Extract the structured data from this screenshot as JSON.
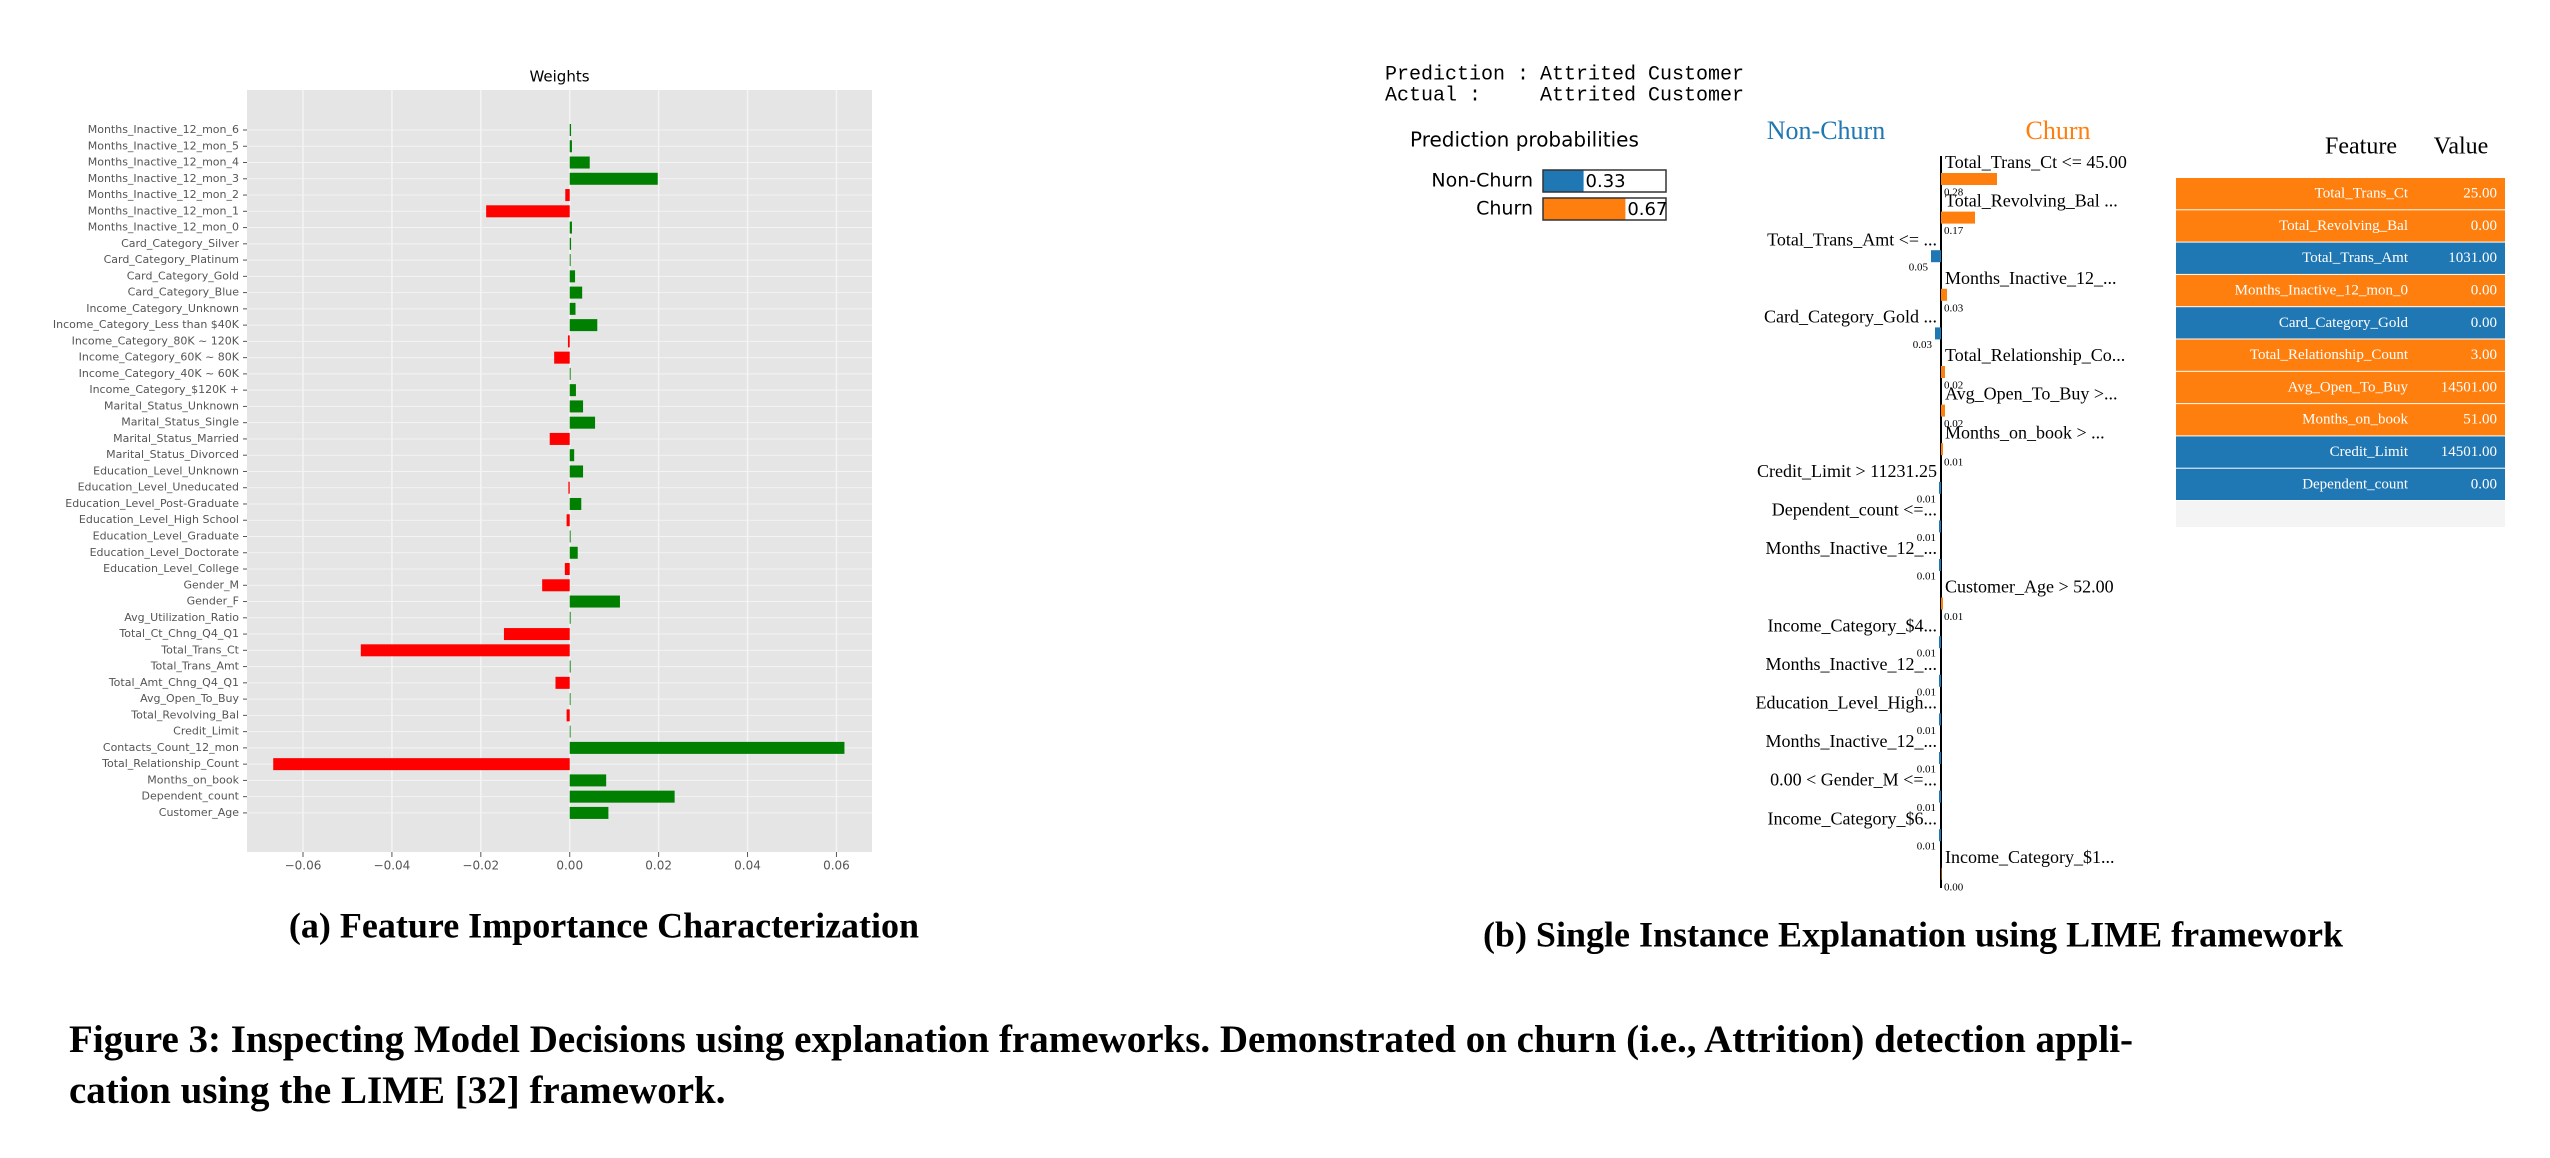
{
  "chart_data": [
    {
      "type": "bar",
      "title": "Weights",
      "categories": [
        "Months_Inactive_12_mon_6",
        "Months_Inactive_12_mon_5",
        "Months_Inactive_12_mon_4",
        "Months_Inactive_12_mon_3",
        "Months_Inactive_12_mon_2",
        "Months_Inactive_12_mon_1",
        "Months_Inactive_12_mon_0",
        "Card_Category_Silver",
        "Card_Category_Platinum",
        "Card_Category_Gold",
        "Card_Category_Blue",
        "Income_Category_Unknown",
        "Income_Category_Less than $40K",
        "Income_Category_80K ~ 120K",
        "Income_Category_60K ~ 80K",
        "Income_Category_40K ~ 60K",
        "Income_Category_$120K +",
        "Marital_Status_Unknown",
        "Marital_Status_Single",
        "Marital_Status_Married",
        "Marital_Status_Divorced",
        "Education_Level_Unknown",
        "Education_Level_Uneducated",
        "Education_Level_Post-Graduate",
        "Education_Level_High School",
        "Education_Level_Graduate",
        "Education_Level_Doctorate",
        "Education_Level_College",
        "Gender_M",
        "Gender_F",
        "Avg_Utilization_Ratio",
        "Total_Ct_Chng_Q4_Q1",
        "Total_Trans_Ct",
        "Total_Trans_Amt",
        "Total_Amt_Chng_Q4_Q1",
        "Avg_Open_To_Buy",
        "Total_Revolving_Bal",
        "Credit_Limit",
        "Contacts_Count_12_mon",
        "Total_Relationship_Count",
        "Months_on_book",
        "Dependent_count",
        "Customer_Age"
      ],
      "values": [
        0.0003,
        0.0005,
        0.0045,
        0.0198,
        -0.001,
        -0.0188,
        0.0005,
        0.0003,
        0.0002,
        0.0012,
        0.0028,
        0.0013,
        0.0062,
        -0.0004,
        -0.0035,
        0.0002,
        0.0014,
        0.003,
        0.0057,
        -0.0045,
        0.001,
        0.003,
        -0.0003,
        0.0026,
        -0.0007,
        0.0002,
        0.0018,
        -0.0011,
        -0.0062,
        0.0113,
        0.0002,
        -0.0148,
        -0.047,
        0.0002,
        -0.0032,
        0.0001,
        -0.0007,
        0.0001,
        0.0618,
        -0.0667,
        0.0082,
        0.0236,
        0.0087
      ],
      "positive_color": "#008000",
      "negative_color": "#ff0000",
      "xlim": [
        -0.0726,
        0.068
      ],
      "xticks": [
        {
          "value": -0.06,
          "label": "−0.06"
        },
        {
          "value": -0.04,
          "label": "−0.04"
        },
        {
          "value": -0.02,
          "label": "−0.02"
        },
        {
          "value": 0,
          "label": "0.00"
        },
        {
          "value": 0.02,
          "label": "0.02"
        },
        {
          "value": 0.04,
          "label": "0.04"
        },
        {
          "value": 0.06,
          "label": "0.06"
        }
      ],
      "grid": true
    },
    {
      "type": "bar",
      "title": "Prediction probabilities",
      "categories": [
        "Non-Churn",
        "Churn"
      ],
      "values": [
        0.33,
        0.67
      ],
      "colors": [
        "#1f77b4",
        "#ff7f0e"
      ],
      "xlim": [
        0,
        1
      ]
    },
    {
      "type": "diverging",
      "categories": [
        "Total_Trans_Ct <= 45.00",
        "Total_Revolving_Bal ...",
        "Total_Trans_Amt <= ...",
        "Months_Inactive_12_...",
        "Card_Category_Gold ...",
        "Total_Relationship_Co...",
        "Avg_Open_To_Buy >...",
        "Months_on_book > ...",
        "Credit_Limit > 11231.25",
        "Dependent_count <=...",
        "Months_Inactive_12_...",
        "Customer_Age > 52.00",
        "Income_Category_$4...",
        "Months_Inactive_12_...",
        "Education_Level_High...",
        "Months_Inactive_12_...",
        "0.00 < Gender_M <=...",
        "Income_Category_$6...",
        "Income_Category_$1..."
      ],
      "series": [
        {
          "name": "Non-Churn",
          "color": "#1f77b4",
          "values": [
            null,
            null,
            0.05,
            null,
            0.03,
            null,
            null,
            null,
            0.01,
            0.01,
            0.01,
            null,
            0.01,
            0.01,
            0.01,
            0.01,
            0.01,
            0.01,
            null
          ]
        },
        {
          "name": "Churn",
          "color": "#ff7f0e",
          "values": [
            0.28,
            0.17,
            null,
            0.03,
            null,
            0.02,
            0.02,
            0.01,
            null,
            null,
            null,
            0.01,
            null,
            null,
            null,
            null,
            null,
            null,
            0
          ],
          "value_labels": [
            null,
            null,
            null,
            null,
            null,
            null,
            null,
            null,
            null,
            null,
            null,
            null,
            null,
            null,
            null,
            null,
            null,
            null,
            "0.00"
          ]
        }
      ],
      "xlim": [
        -0.3,
        0.3
      ]
    }
  ],
  "panel_b": {
    "prediction": {
      "label": "Prediction :",
      "value": "Attrited Customer"
    },
    "actual": {
      "label": "Actual :",
      "value": "Attrited Customer"
    },
    "table": {
      "columns": [
        "Feature",
        "Value"
      ],
      "rows": [
        [
          "Total_Trans_Ct",
          "25.00"
        ],
        [
          "Total_Revolving_Bal",
          "0.00"
        ],
        [
          "Total_Trans_Amt",
          "1031.00"
        ],
        [
          "Months_Inactive_12_mon_0",
          "0.00"
        ],
        [
          "Card_Category_Gold",
          "0.00"
        ],
        [
          "Total_Relationship_Count",
          "3.00"
        ],
        [
          "Avg_Open_To_Buy",
          "14501.00"
        ],
        [
          "Months_on_book",
          "51.00"
        ],
        [
          "Credit_Limit",
          "14501.00"
        ],
        [
          "Dependent_count",
          "0.00"
        ]
      ],
      "row_colors": [
        "#ff7f0e",
        "#ff7f0e",
        "#1f77b4",
        "#ff7f0e",
        "#1f77b4",
        "#ff7f0e",
        "#ff7f0e",
        "#ff7f0e",
        "#1f77b4",
        "#1f77b4"
      ]
    }
  },
  "subcaptions": [
    "(a) Feature Importance Characterization",
    "(b) Single Instance Explanation using LIME framework"
  ],
  "caption_lines": [
    "Figure 3: Inspecting Model Decisions using explanation frameworks. Demonstrated on churn (i.e., Attrition) detection appli-",
    "cation using the LIME [32] framework."
  ]
}
